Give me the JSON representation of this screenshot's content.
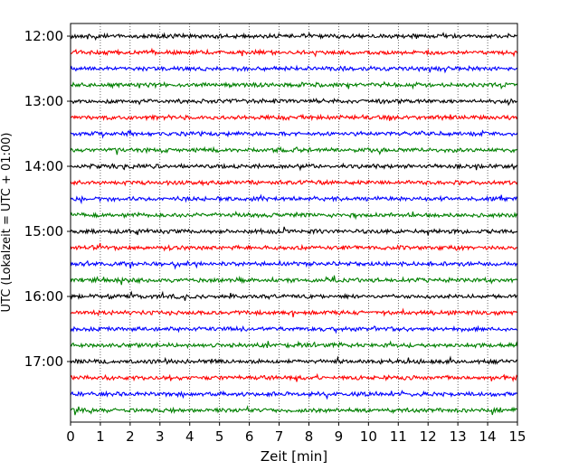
{
  "chart_data": {
    "type": "line",
    "title": "",
    "xlabel": "Zeit  [min]",
    "ylabel": "UTC (Lokalzeit = UTC + 01:00)",
    "xlim": [
      0,
      15
    ],
    "x_ticks": [
      "0",
      "1",
      "2",
      "3",
      "4",
      "5",
      "6",
      "7",
      "8",
      "9",
      "10",
      "11",
      "12",
      "13",
      "14",
      "15"
    ],
    "y_ticks": [
      "12:00",
      "13:00",
      "14:00",
      "15:00",
      "16:00",
      "17:00"
    ],
    "grid": "vertical dotted at each minute",
    "trace_interval_min": 15,
    "color_cycle": [
      "#000000",
      "#ff0000",
      "#0000ff",
      "#008000"
    ],
    "series": [
      {
        "start": "12:00",
        "color": "#000000"
      },
      {
        "start": "12:15",
        "color": "#ff0000"
      },
      {
        "start": "12:30",
        "color": "#0000ff"
      },
      {
        "start": "12:45",
        "color": "#008000"
      },
      {
        "start": "13:00",
        "color": "#000000"
      },
      {
        "start": "13:15",
        "color": "#ff0000"
      },
      {
        "start": "13:30",
        "color": "#0000ff"
      },
      {
        "start": "13:45",
        "color": "#008000"
      },
      {
        "start": "14:00",
        "color": "#000000"
      },
      {
        "start": "14:15",
        "color": "#ff0000"
      },
      {
        "start": "14:30",
        "color": "#0000ff"
      },
      {
        "start": "14:45",
        "color": "#008000"
      },
      {
        "start": "15:00",
        "color": "#000000"
      },
      {
        "start": "15:15",
        "color": "#ff0000"
      },
      {
        "start": "15:30",
        "color": "#0000ff"
      },
      {
        "start": "15:45",
        "color": "#008000"
      },
      {
        "start": "16:00",
        "color": "#000000"
      },
      {
        "start": "16:15",
        "color": "#ff0000"
      },
      {
        "start": "16:30",
        "color": "#0000ff"
      },
      {
        "start": "16:45",
        "color": "#008000"
      },
      {
        "start": "17:00",
        "color": "#000000"
      },
      {
        "start": "17:15",
        "color": "#ff0000"
      },
      {
        "start": "17:30",
        "color": "#0000ff"
      },
      {
        "start": "17:45",
        "color": "#008000"
      }
    ]
  }
}
